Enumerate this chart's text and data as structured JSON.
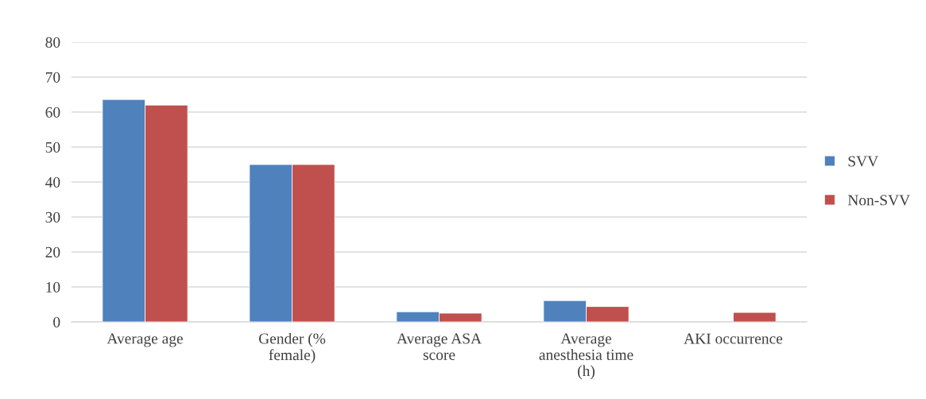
{
  "chart_data": {
    "type": "bar",
    "categories": [
      "Average age",
      "Gender (% female)",
      "Average ASA score",
      "Average anesthesia time (h)",
      "AKI occurrence"
    ],
    "series": [
      {
        "name": "SVV",
        "color": "#4f81bd",
        "values": [
          63.6,
          45,
          2.9,
          6.1,
          null
        ]
      },
      {
        "name": "Non-SVV",
        "color": "#c0504d",
        "values": [
          62,
          45,
          2.5,
          4.4,
          2.7
        ]
      }
    ],
    "ylim": [
      0,
      80
    ],
    "yticks": [
      0,
      10,
      20,
      30,
      40,
      50,
      60,
      70,
      80
    ],
    "grid": "y",
    "legend": "right"
  }
}
